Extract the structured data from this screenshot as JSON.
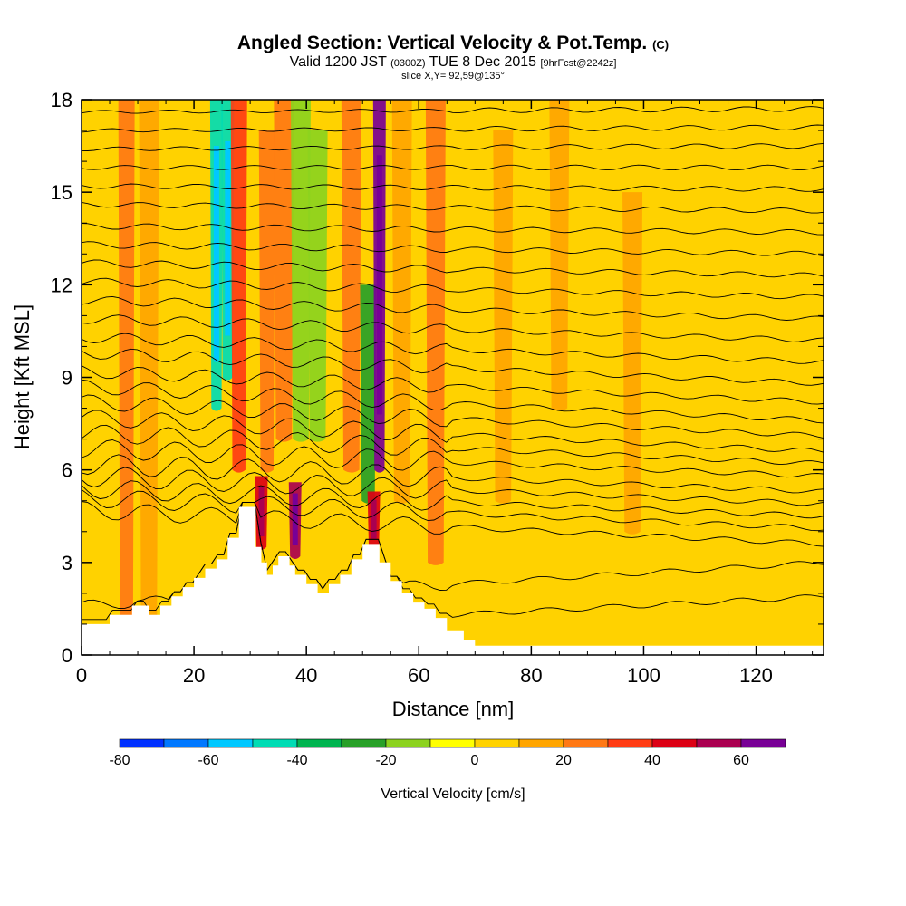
{
  "title": {
    "main": "Angled Section: Vertical Velocity & Pot.Temp.",
    "copyright_mark": "(C)",
    "valid_prefix": "Valid 1200 JST",
    "valid_zulu": "(0300Z)",
    "valid_date": "TUE 8 Dec 2015",
    "forecast_info": "[9hrFcst@2242z]",
    "slice": "slice X,Y= 92,59@135°"
  },
  "chart_data": {
    "type": "heatmap",
    "xlabel": "Distance [nm]",
    "ylabel": "Height [Kft MSL]",
    "xlim": [
      0,
      132
    ],
    "ylim": [
      0,
      18
    ],
    "xticks": [
      0,
      20,
      40,
      60,
      80,
      100,
      120
    ],
    "yticks": [
      0,
      3,
      6,
      9,
      12,
      15,
      18
    ],
    "colorbar": {
      "label": "Vertical Velocity [cm/s]",
      "ticks": [
        -80,
        -60,
        -40,
        -20,
        0,
        20,
        40,
        60
      ],
      "bounds": [
        -80,
        -70,
        -60,
        -50,
        -40,
        -30,
        -20,
        -10,
        0,
        10,
        20,
        30,
        40,
        50,
        60,
        70
      ],
      "colors": [
        "#0030ff",
        "#0078ff",
        "#00c8ff",
        "#00dcb4",
        "#00b450",
        "#28a028",
        "#8cd21e",
        "#ffff00",
        "#ffd200",
        "#ffa500",
        "#ff7814",
        "#ff3c14",
        "#dc0014",
        "#aa0050",
        "#780096"
      ]
    },
    "background_value": 5,
    "vertical_motion_features": [
      {
        "x": 8,
        "value": 25,
        "ytop": 18,
        "ybot": 1
      },
      {
        "x": 12,
        "value": 15,
        "ytop": 18,
        "ybot": 1
      },
      {
        "x": 24,
        "value": -45,
        "ytop": 18,
        "ybot": 8
      },
      {
        "x": 26,
        "value": -50,
        "ytop": 18,
        "ybot": 9
      },
      {
        "x": 28,
        "value": 30,
        "ytop": 18,
        "ybot": 6
      },
      {
        "x": 33,
        "value": 25,
        "ytop": 17,
        "ybot": 6
      },
      {
        "x": 36,
        "value": 20,
        "ytop": 18,
        "ybot": 7
      },
      {
        "x": 39,
        "value": -15,
        "ytop": 18,
        "ybot": 7
      },
      {
        "x": 42,
        "value": -20,
        "ytop": 17,
        "ybot": 7
      },
      {
        "x": 48,
        "value": 20,
        "ytop": 18,
        "ybot": 6
      },
      {
        "x": 51,
        "value": -30,
        "ytop": 12,
        "ybot": 5
      },
      {
        "x": 53,
        "value": 65,
        "ytop": 18,
        "ybot": 6
      },
      {
        "x": 57,
        "value": 15,
        "ytop": 18,
        "ybot": 5
      },
      {
        "x": 63,
        "value": 20,
        "ytop": 18,
        "ybot": 3
      },
      {
        "x": 75,
        "value": 15,
        "ytop": 17,
        "ybot": 5
      },
      {
        "x": 85,
        "value": 15,
        "ytop": 18,
        "ybot": 8
      },
      {
        "x": 98,
        "value": 10,
        "ytop": 15,
        "ybot": 4
      },
      {
        "x": 32,
        "value": 45,
        "ytop": 5.8,
        "ybot": 3.5
      },
      {
        "x": 38,
        "value": 50,
        "ytop": 5.6,
        "ybot": 3.2
      },
      {
        "x": 52,
        "value": 45,
        "ytop": 5.3,
        "ybot": 3.5
      }
    ],
    "terrain": {
      "x": [
        0,
        5,
        5,
        9,
        9,
        12,
        12,
        14,
        14,
        16,
        16,
        18,
        18,
        20,
        20,
        22,
        22,
        24,
        24,
        26,
        26,
        28,
        28,
        31,
        31,
        32,
        32,
        33,
        33,
        34,
        34,
        35,
        35,
        37,
        37,
        38,
        38,
        40,
        40,
        42,
        42,
        44,
        44,
        46,
        46,
        48,
        48,
        50,
        50,
        53,
        53,
        55,
        55,
        57,
        57,
        59,
        59,
        61,
        61,
        63,
        63,
        65,
        65,
        68,
        68,
        70,
        70,
        132
      ],
      "y": [
        1.0,
        1.0,
        1.3,
        1.3,
        1.6,
        1.6,
        1.3,
        1.3,
        1.6,
        1.6,
        1.9,
        1.9,
        2.2,
        2.2,
        2.5,
        2.5,
        2.8,
        2.8,
        3.1,
        3.1,
        3.8,
        3.8,
        4.8,
        4.8,
        3.5,
        3.5,
        3.0,
        3.0,
        2.6,
        2.6,
        2.9,
        2.9,
        3.2,
        3.2,
        2.9,
        2.9,
        2.6,
        2.6,
        2.3,
        2.3,
        2.0,
        2.0,
        2.3,
        2.3,
        2.6,
        2.6,
        3.1,
        3.1,
        3.6,
        3.6,
        3.0,
        3.0,
        2.4,
        2.4,
        2.0,
        2.0,
        1.7,
        1.7,
        1.5,
        1.5,
        1.2,
        1.2,
        0.8,
        0.8,
        0.5,
        0.5,
        0.3,
        0.3
      ]
    },
    "theta_contours": [
      {
        "y0": 0.7,
        "y1": 1.9
      },
      {
        "y0": 1.6,
        "y1": 3.0
      },
      {
        "y0": 4.7,
        "y1": 3.6
      },
      {
        "y0": 5.1,
        "y1": 4.1
      },
      {
        "y0": 5.4,
        "y1": 4.5
      },
      {
        "y0": 5.8,
        "y1": 4.9
      },
      {
        "y0": 6.2,
        "y1": 5.3
      },
      {
        "y0": 6.7,
        "y1": 5.8
      },
      {
        "y0": 7.2,
        "y1": 6.2
      },
      {
        "y0": 7.7,
        "y1": 6.6
      },
      {
        "y0": 8.2,
        "y1": 7.1
      },
      {
        "y0": 8.7,
        "y1": 7.6
      },
      {
        "y0": 9.2,
        "y1": 8.2
      },
      {
        "y0": 9.8,
        "y1": 8.8
      },
      {
        "y0": 10.3,
        "y1": 9.5
      },
      {
        "y0": 10.9,
        "y1": 10.2
      },
      {
        "y0": 11.5,
        "y1": 10.9
      },
      {
        "y0": 12.1,
        "y1": 11.6
      },
      {
        "y0": 12.7,
        "y1": 12.3
      },
      {
        "y0": 13.3,
        "y1": 13.0
      },
      {
        "y0": 13.9,
        "y1": 13.7
      },
      {
        "y0": 14.6,
        "y1": 14.4
      },
      {
        "y0": 15.2,
        "y1": 15.1
      },
      {
        "y0": 15.8,
        "y1": 15.8
      },
      {
        "y0": 16.4,
        "y1": 16.5
      },
      {
        "y0": 17.0,
        "y1": 17.1
      },
      {
        "y0": 17.6,
        "y1": 17.7
      }
    ]
  }
}
